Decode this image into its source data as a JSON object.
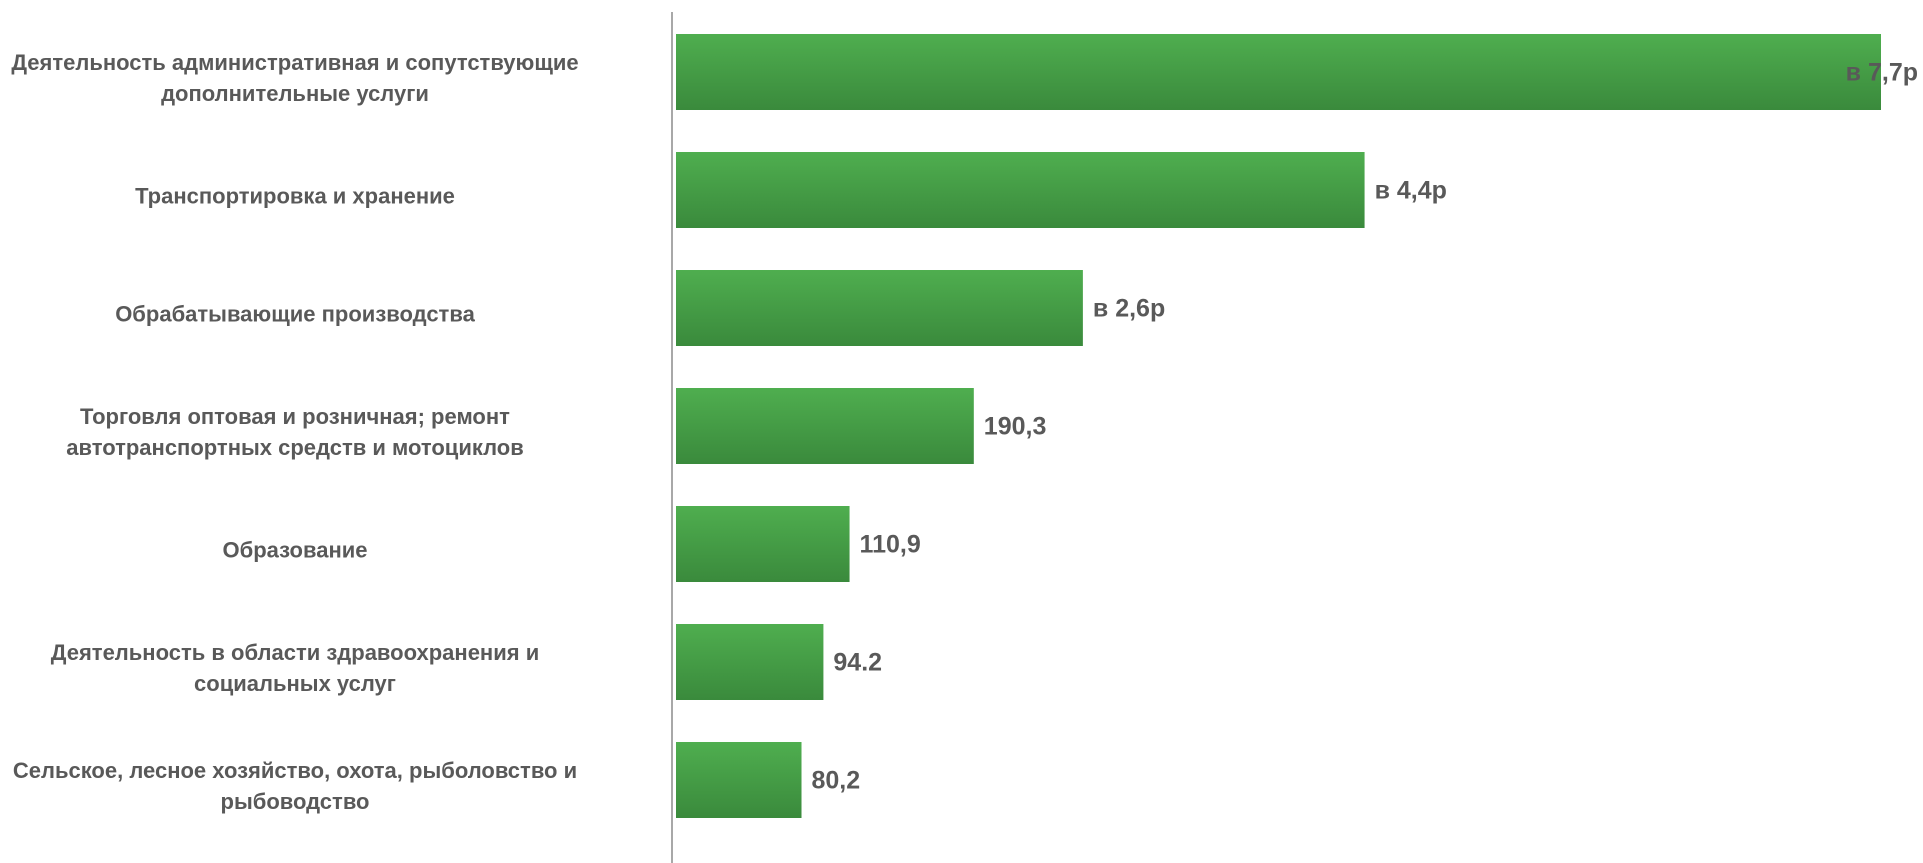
{
  "chart_data": {
    "type": "bar",
    "orientation": "horizontal",
    "categories": [
      "Деятельность административная и сопутствующие дополнительные услуги",
      "Транспортировка и хранение",
      "Обрабатывающие производства",
      "Торговля оптовая и розничная; ремонт автотранспортных средств и мотоциклов",
      "Образование",
      "Деятельность в области здравоохранения и социальных услуг",
      "Сельское, лесное хозяйство, охота, рыболовство и рыбоводство"
    ],
    "values": [
      770,
      440,
      260,
      190.3,
      110.9,
      94.2,
      80.2
    ],
    "value_labels": [
      "в 7,7р",
      "в 4,4р",
      "в 2,6р",
      "190,3",
      "110,9",
      "94.2",
      "80,2"
    ],
    "color": "#45a047"
  }
}
